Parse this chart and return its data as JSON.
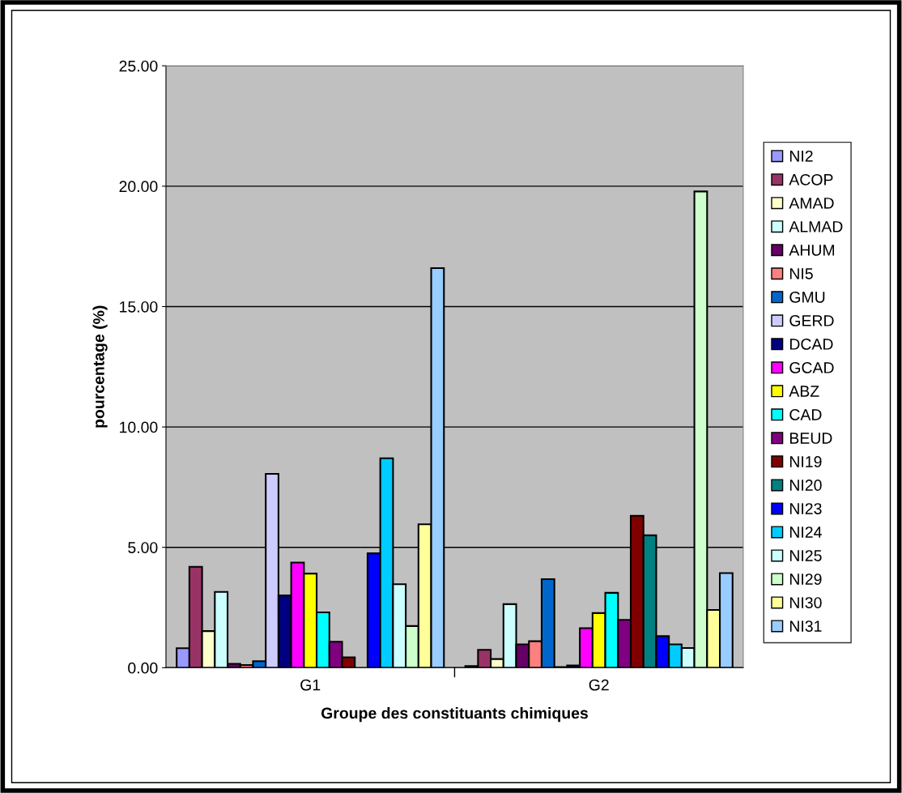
{
  "chart_data": {
    "type": "bar",
    "xlabel": "Groupe des constituants chimiques",
    "ylabel": "pourcentage (%)",
    "categories": [
      "G1",
      "G2"
    ],
    "ylim": [
      0,
      25
    ],
    "yticks": [
      {
        "value": 0,
        "label": "0.00"
      },
      {
        "value": 5,
        "label": "5.00"
      },
      {
        "value": 10,
        "label": "10.00"
      },
      {
        "value": 15,
        "label": "15.00"
      },
      {
        "value": 20,
        "label": "20.00"
      },
      {
        "value": 25,
        "label": "25.00"
      }
    ],
    "grid": "y",
    "legend": "right",
    "series": [
      {
        "name": "NI2",
        "color": "#9999ff",
        "values": [
          0.81,
          0.07
        ]
      },
      {
        "name": "ACOP",
        "color": "#993366",
        "values": [
          4.19,
          0.74
        ]
      },
      {
        "name": "AMAD",
        "color": "#ffffcc",
        "values": [
          1.52,
          0.36
        ]
      },
      {
        "name": "ALMAD",
        "color": "#ccffff",
        "values": [
          3.15,
          2.64
        ]
      },
      {
        "name": "AHUM",
        "color": "#660066",
        "values": [
          0.16,
          0.97
        ]
      },
      {
        "name": "NI5",
        "color": "#ff8080",
        "values": [
          0.11,
          1.1
        ]
      },
      {
        "name": "GMU",
        "color": "#0066cc",
        "values": [
          0.27,
          3.68
        ]
      },
      {
        "name": "GERD",
        "color": "#ccccff",
        "values": [
          8.05,
          0.03
        ]
      },
      {
        "name": "DCAD",
        "color": "#000080",
        "values": [
          3.0,
          0.09
        ]
      },
      {
        "name": "GCAD",
        "color": "#ff00ff",
        "values": [
          4.37,
          1.64
        ]
      },
      {
        "name": "ABZ",
        "color": "#ffff00",
        "values": [
          3.91,
          2.27
        ]
      },
      {
        "name": "CAD",
        "color": "#00ffff",
        "values": [
          2.3,
          3.11
        ]
      },
      {
        "name": "BEUD",
        "color": "#800080",
        "values": [
          1.08,
          1.99
        ]
      },
      {
        "name": "NI19",
        "color": "#800000",
        "values": [
          0.43,
          6.31
        ]
      },
      {
        "name": "NI20",
        "color": "#008080",
        "values": [
          null,
          5.5
        ]
      },
      {
        "name": "NI23",
        "color": "#0000ff",
        "values": [
          4.75,
          1.31
        ]
      },
      {
        "name": "NI24",
        "color": "#00ccff",
        "values": [
          8.7,
          0.97
        ]
      },
      {
        "name": "NI25",
        "color": "#ccffff",
        "values": [
          3.47,
          0.82
        ]
      },
      {
        "name": "NI29",
        "color": "#ccffcc",
        "values": [
          1.73,
          19.78
        ]
      },
      {
        "name": "NI30",
        "color": "#ffff99",
        "values": [
          5.96,
          2.4
        ]
      },
      {
        "name": "NI31",
        "color": "#99ccff",
        "values": [
          16.6,
          3.93
        ]
      }
    ]
  }
}
